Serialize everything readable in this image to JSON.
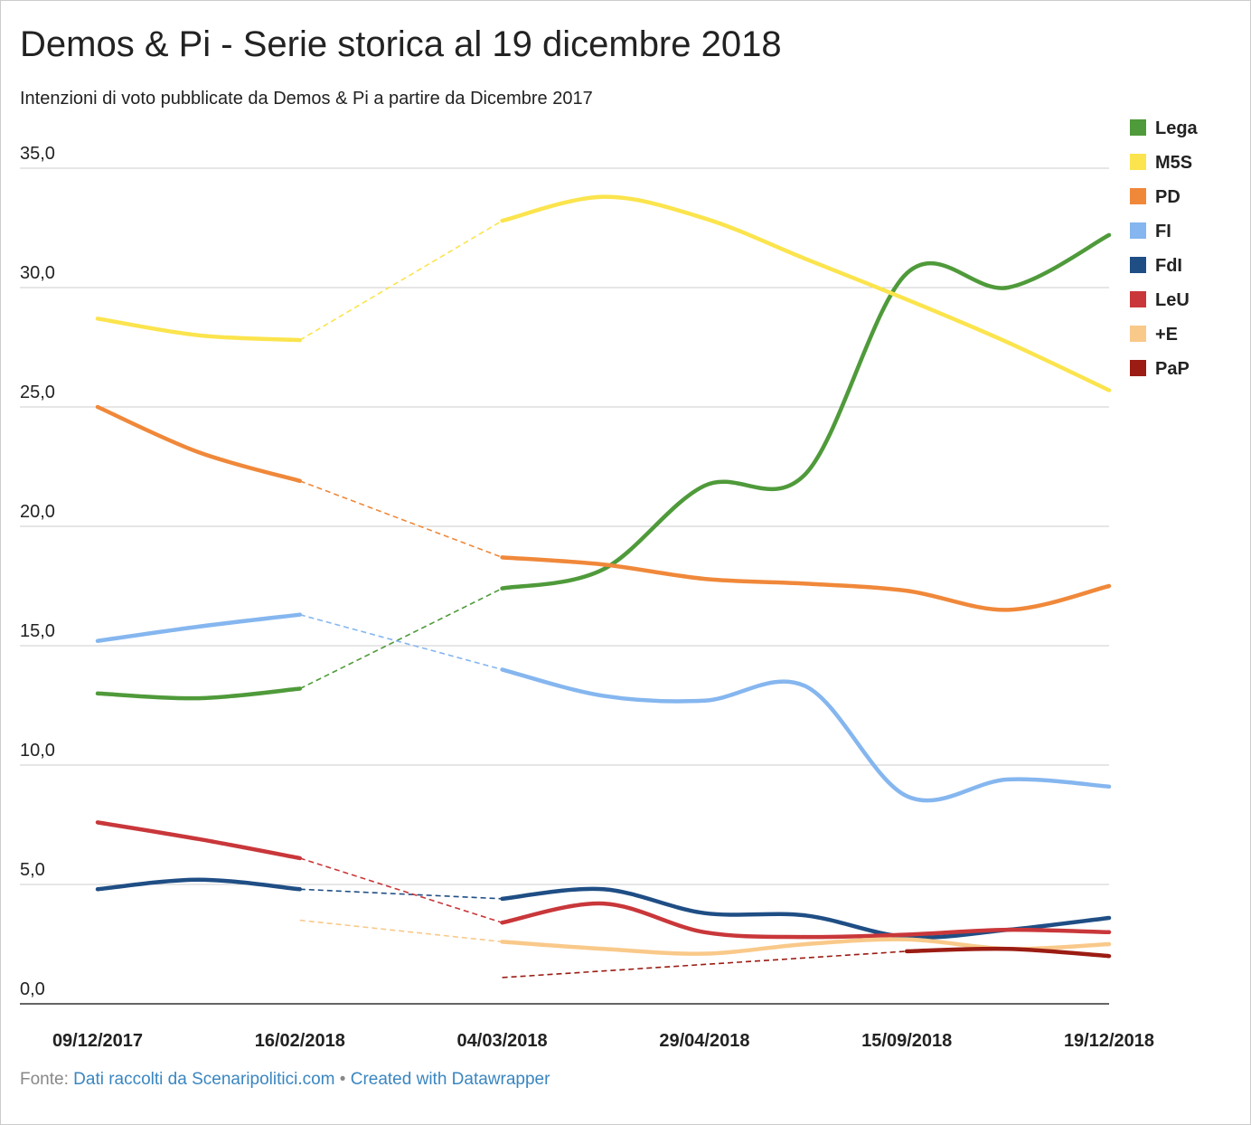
{
  "chart_data": {
    "type": "line",
    "title": "Demos & Pi - Serie storica al 19 dicembre 2018",
    "subtitle": "Intenzioni di voto pubblicate da Demos & Pi a partire da Dicembre 2017",
    "categories": [
      "09/12/2017",
      null,
      "16/02/2018",
      null,
      "04/03/2018",
      null,
      "29/04/2018",
      null,
      "15/09/2018",
      null,
      "19/12/2018"
    ],
    "series": [
      {
        "name": "Lega",
        "color": "#4f9a3a",
        "values": [
          13.0,
          12.8,
          13.2,
          null,
          17.4,
          18.2,
          21.7,
          22.2,
          30.6,
          30.0,
          32.2
        ]
      },
      {
        "name": "M5S",
        "color": "#fbe44d",
        "values": [
          28.7,
          28.0,
          27.8,
          null,
          32.8,
          33.8,
          32.9,
          31.2,
          29.5,
          27.7,
          25.7
        ]
      },
      {
        "name": "PD",
        "color": "#f0883a",
        "values": [
          25.0,
          23.1,
          21.9,
          null,
          18.7,
          18.4,
          17.8,
          17.6,
          17.3,
          16.5,
          17.5
        ]
      },
      {
        "name": "FI",
        "color": "#85b6ef",
        "values": [
          15.2,
          15.8,
          16.3,
          null,
          14.0,
          12.9,
          12.7,
          13.3,
          8.7,
          9.4,
          9.1
        ]
      },
      {
        "name": "FdI",
        "color": "#1f4e85",
        "values": [
          4.8,
          5.2,
          4.8,
          null,
          4.4,
          4.8,
          3.8,
          3.7,
          2.8,
          3.1,
          3.6
        ]
      },
      {
        "name": "LeU",
        "color": "#c9373a",
        "values": [
          7.6,
          6.9,
          6.1,
          null,
          3.4,
          4.2,
          3.0,
          2.8,
          2.9,
          3.1,
          3.0
        ]
      },
      {
        "name": "+E",
        "color": "#f9c98a",
        "values": [
          null,
          null,
          3.5,
          null,
          2.6,
          2.3,
          2.1,
          2.5,
          2.7,
          2.3,
          2.5
        ]
      },
      {
        "name": "PaP",
        "color": "#9b1c13",
        "values": [
          null,
          null,
          null,
          null,
          1.1,
          null,
          null,
          null,
          2.2,
          2.3,
          2.0
        ]
      }
    ],
    "ylim": [
      0,
      35
    ],
    "yticks": [
      {
        "value": 0,
        "label": "0,0"
      },
      {
        "value": 5,
        "label": "5,0"
      },
      {
        "value": 10,
        "label": "10,0"
      },
      {
        "value": 15,
        "label": "15,0"
      },
      {
        "value": 20,
        "label": "20,0"
      },
      {
        "value": 25,
        "label": "25,0"
      },
      {
        "value": 30,
        "label": "30,0"
      },
      {
        "value": 35,
        "label": "35,0"
      }
    ],
    "grid": true,
    "legend": "right",
    "source_label": "Fonte:",
    "source": "Dati raccolti da Scenaripolitici.com",
    "credit": "Created with Datawrapper"
  }
}
